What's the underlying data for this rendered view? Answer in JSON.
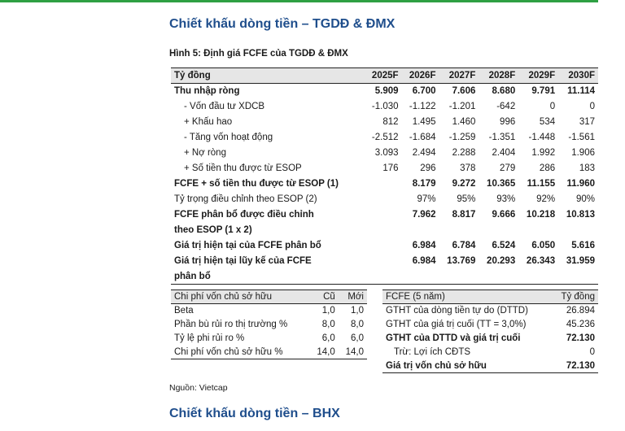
{
  "accent_color": "#2ea043",
  "heading_color": "#1f4e8c",
  "heading1": "Chiết khấu dòng tiền – TGDĐ & ĐMX",
  "caption": "Hình 5: Định giá FCFE của TGDĐ & ĐMX",
  "main_table": {
    "headers": [
      "Tỷ đồng",
      "2025F",
      "2026F",
      "2027F",
      "2028F",
      "2029F",
      "2030F"
    ],
    "rows": [
      [
        "Thu nhập ròng",
        "5.909",
        "6.700",
        "7.606",
        "8.680",
        "9.791",
        "11.114"
      ],
      [
        "- Vốn đầu tư XDCB",
        "-1.030",
        "-1.122",
        "-1.201",
        "-642",
        "0",
        "0"
      ],
      [
        "+ Khấu hao",
        "812",
        "1.495",
        "1.460",
        "996",
        "534",
        "317"
      ],
      [
        "- Tăng vốn hoạt động",
        "-2.512",
        "-1.684",
        "-1.259",
        "-1.351",
        "-1.448",
        "-1.561"
      ],
      [
        "+ Nợ ròng",
        "3.093",
        "2.494",
        "2.288",
        "2.404",
        "1.992",
        "1.906"
      ],
      [
        "+ Số tiền thu được từ ESOP",
        "176",
        "296",
        "378",
        "279",
        "286",
        "183"
      ],
      [
        "FCFE + số tiền thu được từ ESOP (1)",
        "",
        "8.179",
        "9.272",
        "10.365",
        "11.155",
        "11.960"
      ],
      [
        "Tỷ trọng điều chỉnh theo ESOP (2)",
        "",
        "97%",
        "95%",
        "93%",
        "92%",
        "90%"
      ],
      [
        "FCFE phân bổ được điều chỉnh",
        "",
        "7.962",
        "8.817",
        "9.666",
        "10.218",
        "10.813"
      ],
      [
        "theo ESOP (1 x 2)",
        "",
        "",
        "",
        "",
        "",
        ""
      ],
      [
        "Giá trị hiện tại của FCFE phân bổ",
        "",
        "6.984",
        "6.784",
        "6.524",
        "6.050",
        "5.616"
      ],
      [
        "Giá trị hiện tại lũy kế của FCFE",
        "",
        "6.984",
        "13.769",
        "20.293",
        "26.343",
        "31.959"
      ],
      [
        "phân bổ",
        "",
        "",
        "",
        "",
        "",
        ""
      ]
    ]
  },
  "coe_table": {
    "headers": [
      "Chi phí vốn chủ sở hữu",
      "Cũ",
      "Mới"
    ],
    "rows": [
      [
        "Beta",
        "1,0",
        "1,0"
      ],
      [
        "Phần bù rủi ro thị trường %",
        "8,0",
        "8,0"
      ],
      [
        "Tỷ lệ phi rủi ro %",
        "6,0",
        "6,0"
      ],
      [
        "Chi phí vốn chủ sở hữu %",
        "14,0",
        "14,0"
      ]
    ]
  },
  "fcfe_table": {
    "headers": [
      "FCFE (5 năm)",
      "Tỷ đồng"
    ],
    "rows": [
      [
        "GTHT của dòng tiền tự do (DTTD)",
        "26.894"
      ],
      [
        "GTHT của giá trị cuối (TT = 3,0%)",
        "45.236"
      ],
      [
        "GTHT của DTTD và giá trị cuối",
        "72.130"
      ],
      [
        "Trừ: Lợi ích CĐTS",
        "0"
      ],
      [
        "Giá trị vốn chủ sở hữu",
        "72.130"
      ]
    ]
  },
  "source": "Nguồn: Vietcap",
  "heading2": "Chiết khấu dòng tiền – BHX"
}
